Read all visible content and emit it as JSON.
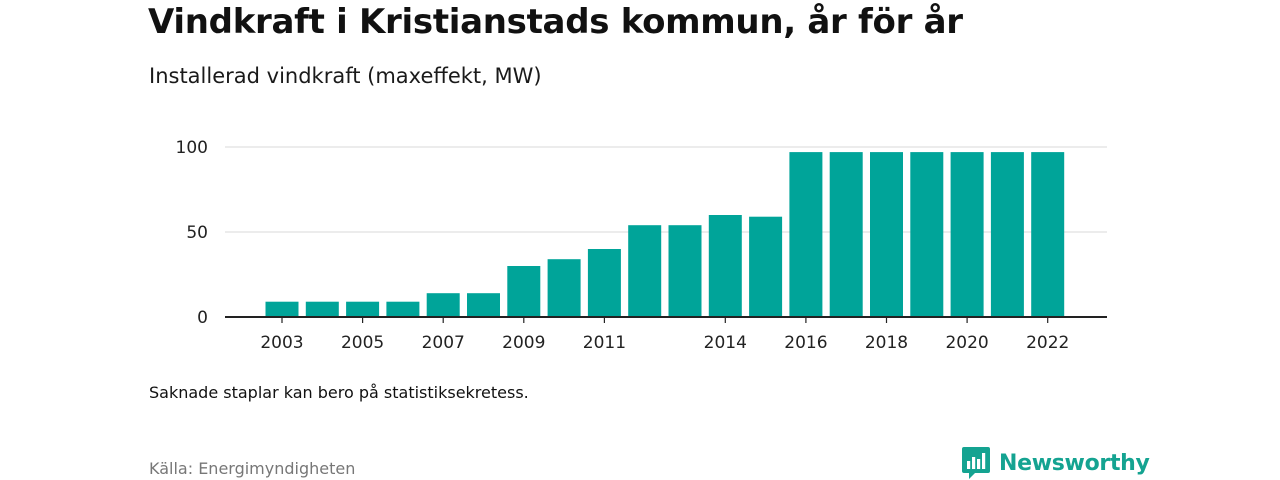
{
  "header": {
    "title": "Vindkraft i Kristianstads kommun, år för år",
    "subtitle": "Installerad vindkraft (maxeffekt, MW)"
  },
  "footer": {
    "note": "Saknade staplar kan bero på statistiksekretess.",
    "source": "Källa: Energimyndigheten",
    "brand": "Newsworthy",
    "logo_icon": "bar-chart-speech-bubble-icon"
  },
  "colors": {
    "bar": "#00a499",
    "brand": "#14a391",
    "gridline": "#d9d9d9",
    "axis": "#222222"
  },
  "chart_data": {
    "type": "bar",
    "title": "Vindkraft i Kristianstads kommun, år för år",
    "subtitle": "Installerad vindkraft (maxeffekt, MW)",
    "xlabel": "",
    "ylabel": "",
    "categories": [
      "2003",
      "2004",
      "2005",
      "2006",
      "2007",
      "2008",
      "2009",
      "2010",
      "2011",
      "2012",
      "2013",
      "2014",
      "2015",
      "2016",
      "2017",
      "2018",
      "2019",
      "2020",
      "2021",
      "2022"
    ],
    "values": [
      9,
      9,
      9,
      9,
      14,
      14,
      30,
      34,
      40,
      54,
      54,
      60,
      59,
      97,
      97,
      97,
      97,
      97,
      97,
      97
    ],
    "x_tick_labels": [
      "2003",
      "2005",
      "2007",
      "2009",
      "2011",
      "2014",
      "2016",
      "2018",
      "2020",
      "2022"
    ],
    "y_ticks": [
      0,
      50,
      100
    ],
    "ylim": [
      0,
      100
    ],
    "grid": true,
    "legend": "none"
  }
}
